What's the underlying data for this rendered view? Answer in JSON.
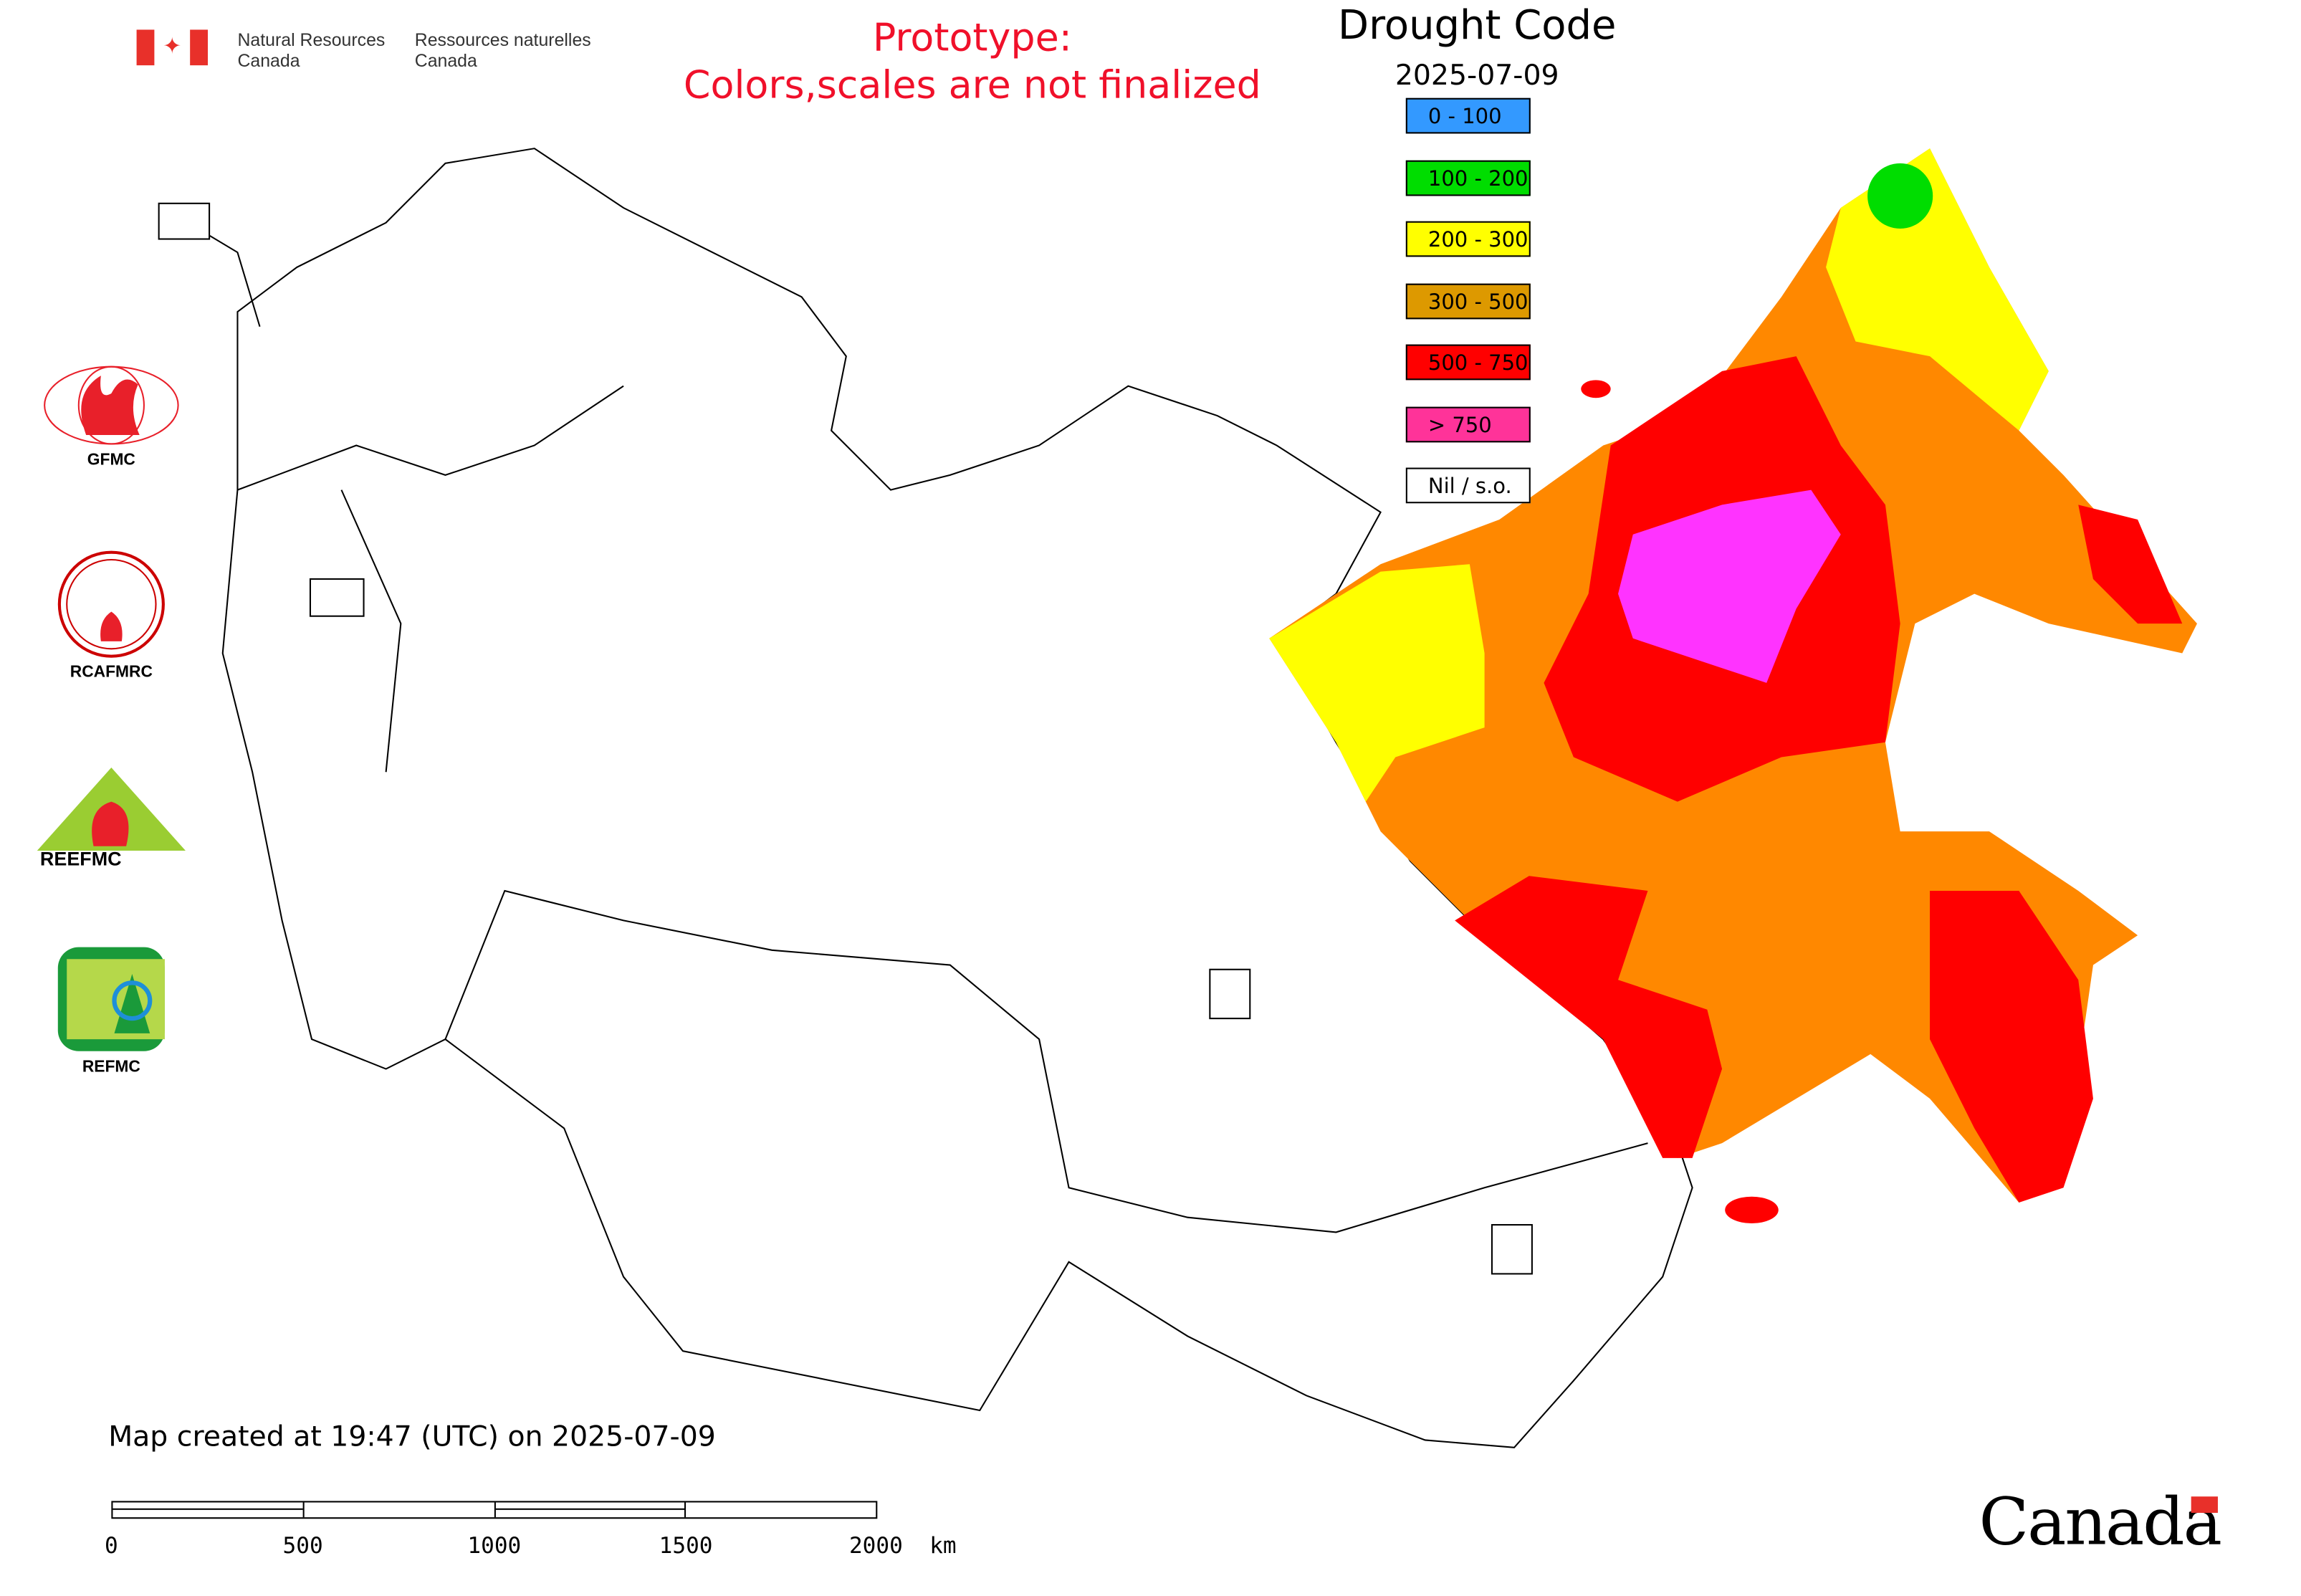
{
  "header": {
    "department_en": [
      "Natural Resources",
      "Canada"
    ],
    "department_fr": [
      "Ressources naturelles",
      "Canada"
    ],
    "prototype_notice": [
      "Prototype:",
      "Colors,scales are not finalized"
    ]
  },
  "legend": {
    "title": "Drought Code",
    "date": "2025-07-09",
    "classes": [
      {
        "label": "0 - 100",
        "color": "#3399ff"
      },
      {
        "label": "100 - 200",
        "color": "#00dd00"
      },
      {
        "label": "200 - 300",
        "color": "#ffff00"
      },
      {
        "label": "300 - 500",
        "color": "#dd9900"
      },
      {
        "label": "500 - 750",
        "color": "#ff0000"
      },
      {
        "label": "> 750",
        "color": "#ff3399"
      },
      {
        "label": "Nil / s.o.",
        "color": "#ffffff"
      }
    ]
  },
  "logos": [
    {
      "label": "GFMC"
    },
    {
      "label": "RCAFMRC"
    },
    {
      "label": "REEFMC"
    },
    {
      "label": "REFMC"
    }
  ],
  "footer": {
    "created": "Map created at 19:47 (UTC) on 2025-07-09",
    "scale_ticks": [
      "0",
      "500",
      "1000",
      "1500",
      "2000  km"
    ],
    "wordmark": "Canada"
  }
}
